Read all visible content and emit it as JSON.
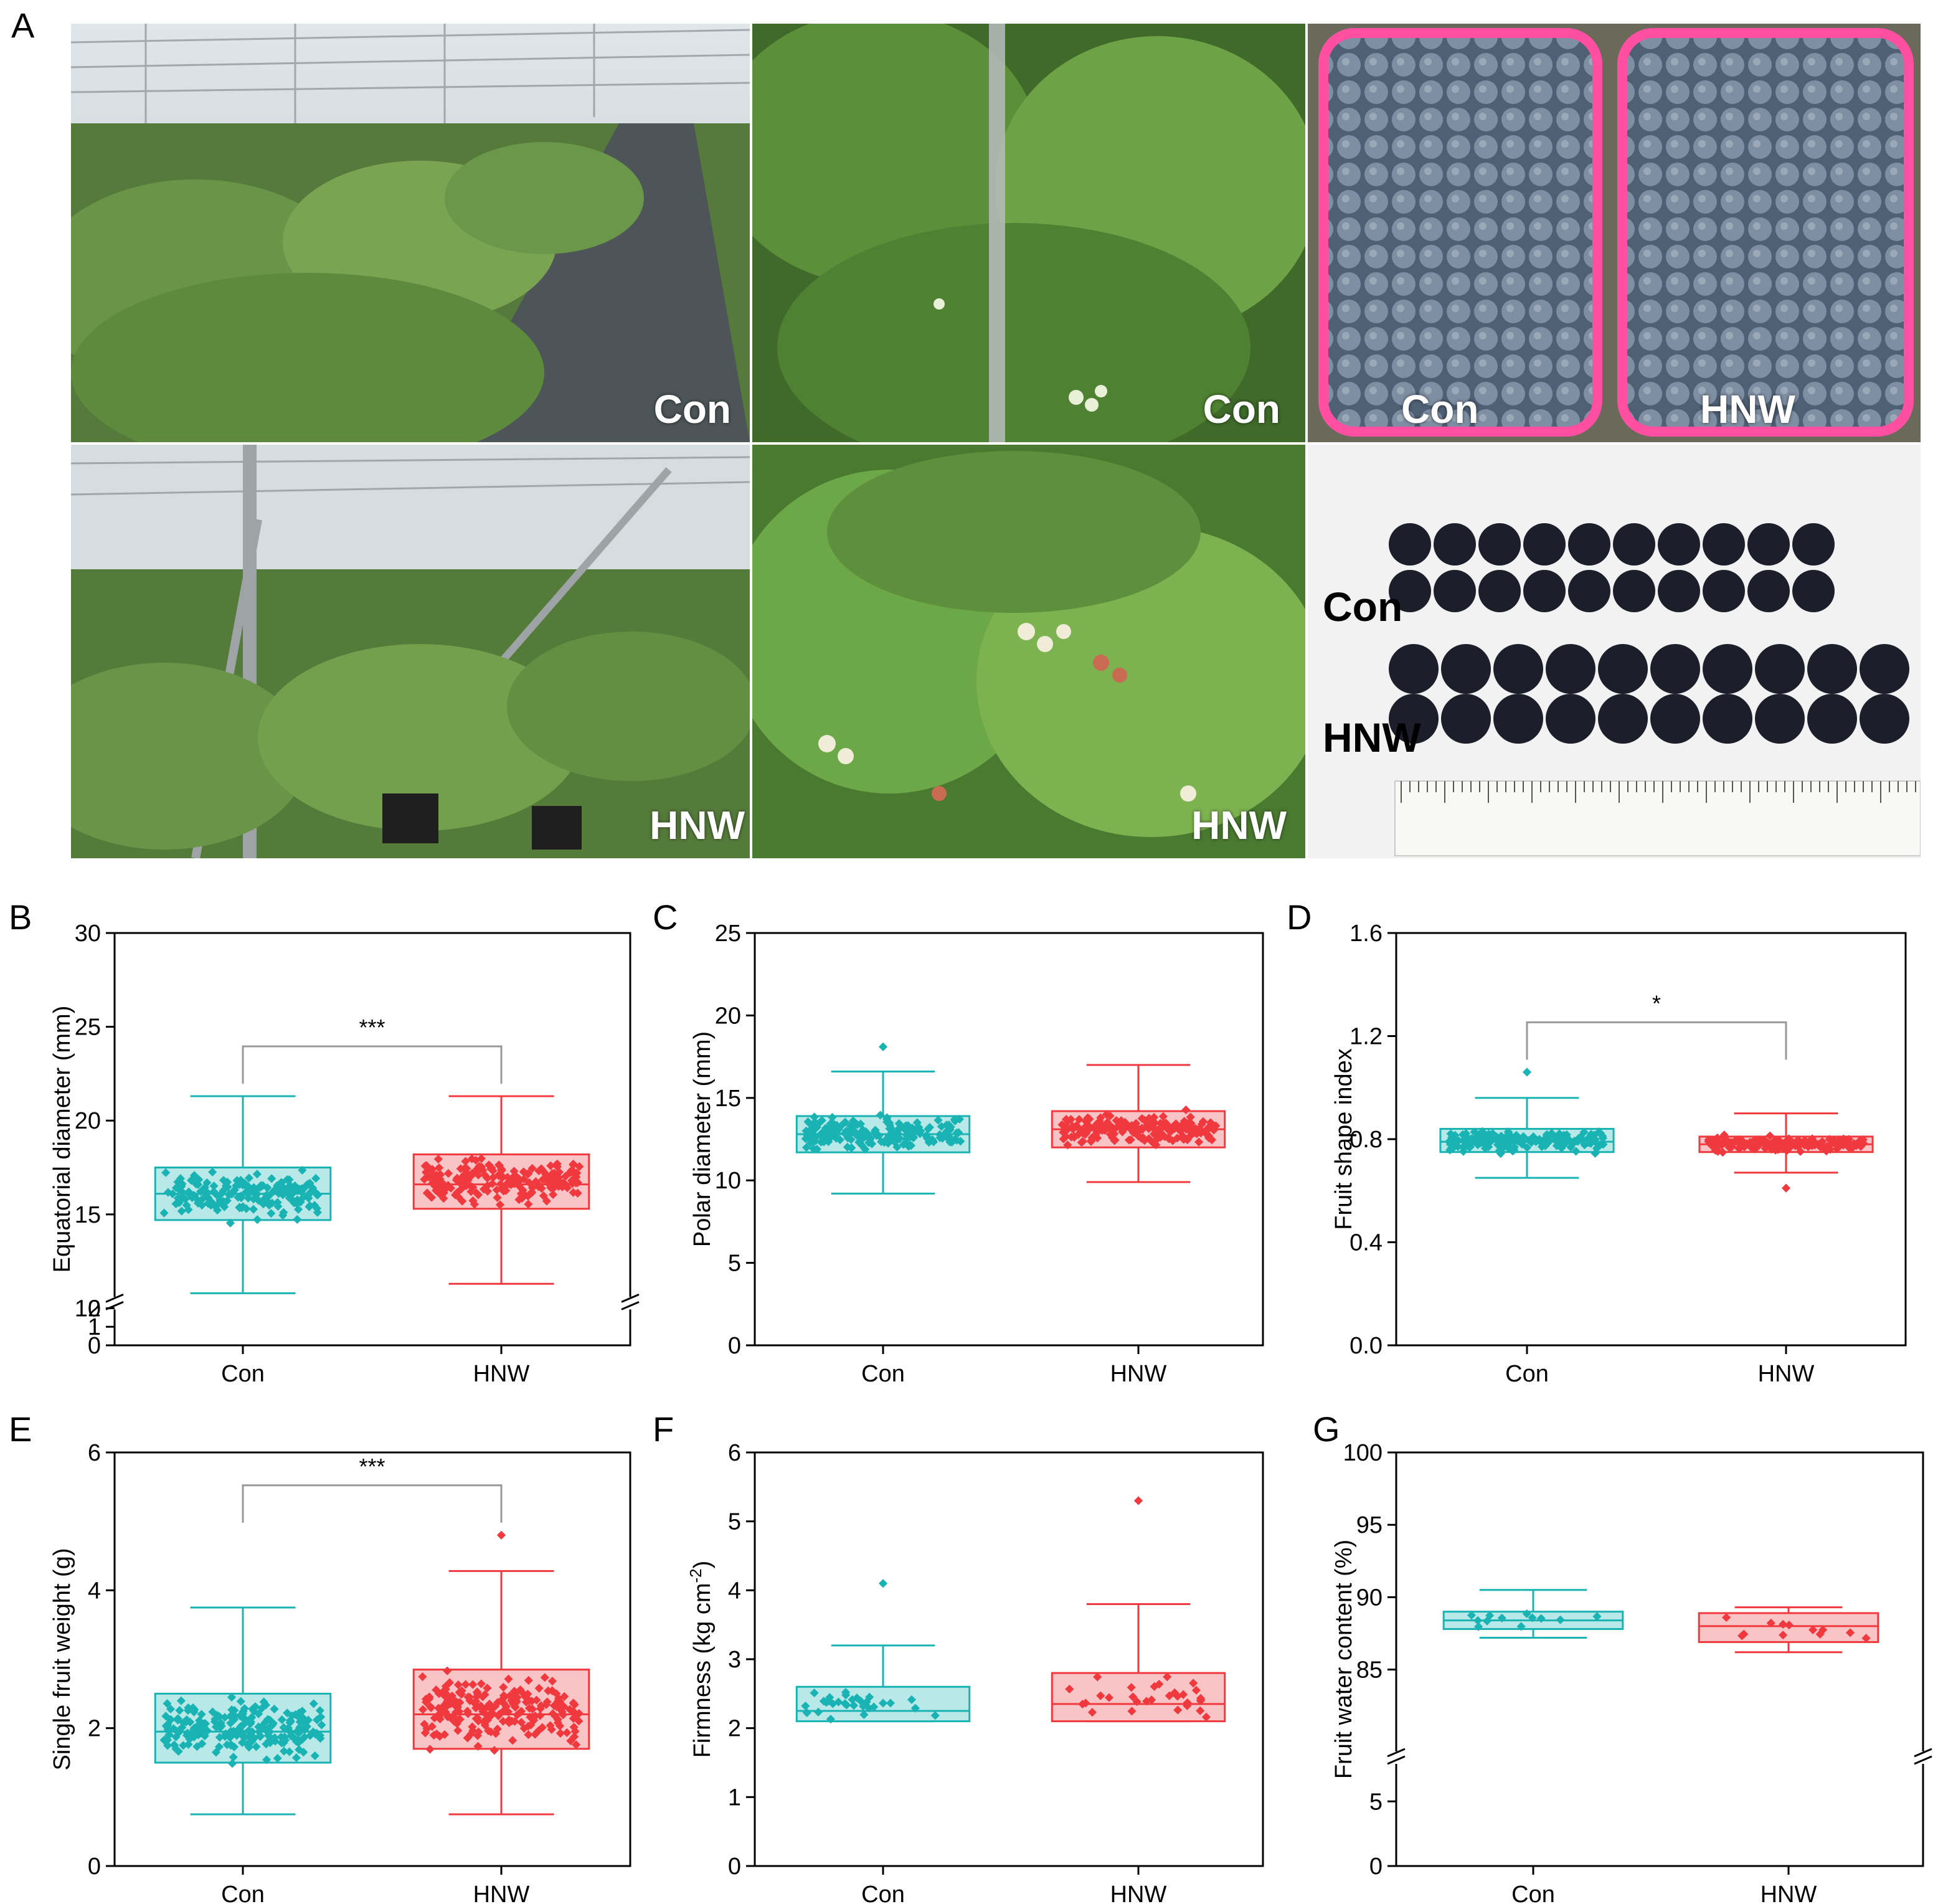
{
  "panel_letters": [
    "A",
    "B",
    "C",
    "D",
    "E",
    "F",
    "G"
  ],
  "photos": {
    "p1_label": "Con",
    "p2_label": "Con",
    "p3_label_left": "Con",
    "p3_label_right": "HNW",
    "p4_label": "HNW",
    "p5_label": "HNW",
    "p6_label_top": "Con",
    "p6_label_bottom": "HNW"
  },
  "colors": {
    "con": "#1ab3b3",
    "con_fill": "#b9e8e8",
    "hnw": "#f0393f",
    "hnw_fill": "#f9c4c6"
  },
  "chart_data": [
    {
      "id": "B",
      "type": "box",
      "ylabel": "Equatorial diameter (mm)",
      "ylim": [
        0,
        30
      ],
      "axis_break": [
        2,
        10
      ],
      "yticks": [
        0,
        1,
        2,
        10,
        15,
        20,
        25,
        30
      ],
      "categories": [
        "Con",
        "HNW"
      ],
      "boxes": [
        {
          "name": "Con",
          "min": 10.8,
          "q1": 14.7,
          "median": 16.1,
          "q3": 17.5,
          "max": 21.3,
          "n": 180
        },
        {
          "name": "HNW",
          "min": 11.3,
          "q1": 15.3,
          "median": 16.6,
          "q3": 18.2,
          "max": 21.3,
          "n": 200
        }
      ],
      "significance": "***"
    },
    {
      "id": "C",
      "type": "box",
      "ylabel": "Polar diameter (mm)",
      "ylim": [
        0,
        25
      ],
      "yticks": [
        0,
        5,
        10,
        15,
        20,
        25
      ],
      "categories": [
        "Con",
        "HNW"
      ],
      "boxes": [
        {
          "name": "Con",
          "min": 9.2,
          "q1": 11.7,
          "median": 12.8,
          "q3": 13.9,
          "max": 16.6,
          "n": 200,
          "outliers": [
            18.1
          ]
        },
        {
          "name": "HNW",
          "min": 9.9,
          "q1": 12.0,
          "median": 13.1,
          "q3": 14.2,
          "max": 17.0,
          "n": 200
        }
      ]
    },
    {
      "id": "D",
      "type": "box",
      "ylabel": "Fruit shape index",
      "ylim": [
        0,
        1.6
      ],
      "yticks": [
        0.0,
        0.4,
        0.8,
        1.2,
        1.6
      ],
      "categories": [
        "Con",
        "HNW"
      ],
      "boxes": [
        {
          "name": "Con",
          "min": 0.65,
          "q1": 0.75,
          "median": 0.79,
          "q3": 0.84,
          "max": 0.96,
          "n": 200,
          "outliers": [
            1.06
          ]
        },
        {
          "name": "HNW",
          "min": 0.67,
          "q1": 0.75,
          "median": 0.78,
          "q3": 0.81,
          "max": 0.9,
          "n": 200,
          "outliers": [
            0.61
          ]
        }
      ],
      "significance": "*"
    },
    {
      "id": "E",
      "type": "box",
      "ylabel": "Single fruit weight (g)",
      "ylim": [
        0,
        6
      ],
      "yticks": [
        0,
        2,
        4,
        6
      ],
      "categories": [
        "Con",
        "HNW"
      ],
      "boxes": [
        {
          "name": "Con",
          "min": 0.75,
          "q1": 1.5,
          "median": 1.95,
          "q3": 2.5,
          "max": 3.75,
          "n": 220
        },
        {
          "name": "HNW",
          "min": 0.75,
          "q1": 1.7,
          "median": 2.2,
          "q3": 2.85,
          "max": 4.28,
          "n": 220,
          "outliers": [
            4.8
          ]
        }
      ],
      "significance": "***"
    },
    {
      "id": "F",
      "type": "box",
      "ylabel": "Firmness (kg cm",
      "ylabel_sup": "-2",
      "ylabel_end": ")",
      "ylim": [
        0,
        6
      ],
      "yticks": [
        0,
        1,
        2,
        3,
        4,
        5,
        6
      ],
      "categories": [
        "Con",
        "HNW"
      ],
      "boxes": [
        {
          "name": "Con",
          "min": 2.1,
          "q1": 2.1,
          "median": 2.25,
          "q3": 2.6,
          "max": 3.2,
          "n": 30,
          "outliers": [
            4.1
          ]
        },
        {
          "name": "HNW",
          "min": 2.1,
          "q1": 2.1,
          "median": 2.35,
          "q3": 2.8,
          "max": 3.8,
          "n": 30,
          "outliers": [
            5.3
          ]
        }
      ]
    },
    {
      "id": "G",
      "type": "box",
      "ylabel": "Fruit water content (%)",
      "ylim": [
        0,
        100
      ],
      "axis_break": [
        8,
        80
      ],
      "yticks": [
        0,
        5,
        85,
        90,
        95,
        100
      ],
      "categories": [
        "Con",
        "HNW"
      ],
      "boxes": [
        {
          "name": "Con",
          "min": 87.2,
          "q1": 87.8,
          "median": 88.4,
          "q3": 89.0,
          "max": 90.5,
          "n": 12
        },
        {
          "name": "HNW",
          "min": 86.2,
          "q1": 86.9,
          "median": 88.0,
          "q3": 88.9,
          "max": 89.3,
          "n": 12
        }
      ]
    }
  ]
}
